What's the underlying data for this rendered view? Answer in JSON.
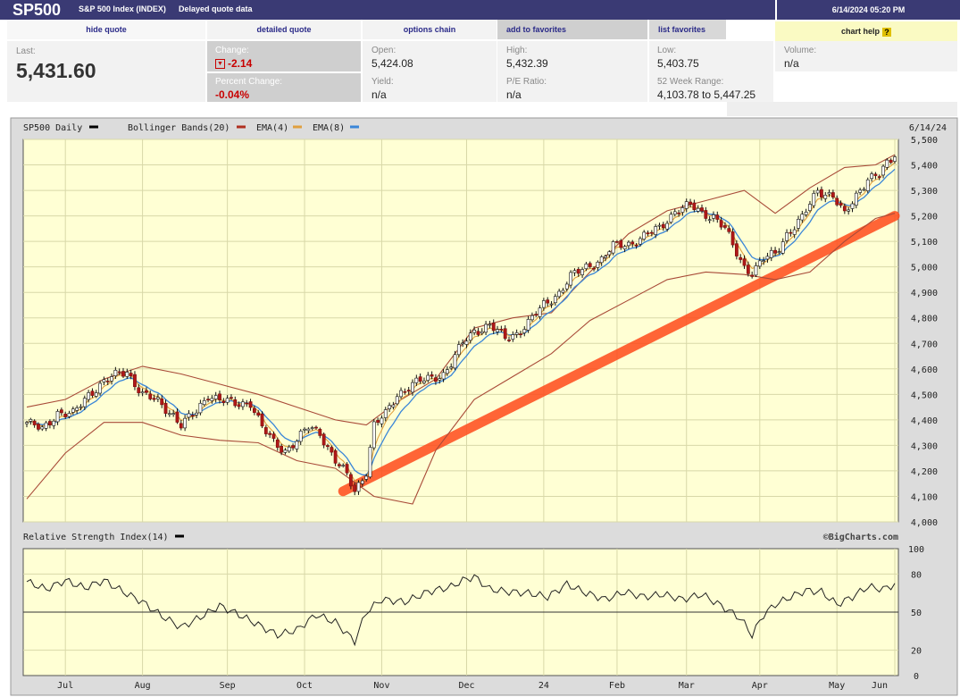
{
  "header": {
    "symbol": "SP500",
    "name": "S&P 500 Index (INDEX)",
    "delayed": "Delayed quote data",
    "datetime": "6/14/2024 05:20 PM"
  },
  "nav": {
    "hide_quote": "hide quote",
    "detailed_quote": "detailed quote",
    "options_chain": "options chain",
    "add_favorites": "add to favorites",
    "list_favorites": "list favorites",
    "chart_help": "chart help",
    "help_mark": "?"
  },
  "quote": {
    "last_label": "Last:",
    "last": "5,431.60",
    "change_label": "Change:",
    "change": "-2.14",
    "pct_label": "Percent Change:",
    "pct": "-0.04%",
    "open_label": "Open:",
    "open": "5,424.08",
    "high_label": "High:",
    "high": "5,432.39",
    "low_label": "Low:",
    "low": "5,403.75",
    "volume_label": "Volume:",
    "volume": "n/a",
    "yield_label": "Yield:",
    "yield": "n/a",
    "pe_label": "P/E Ratio:",
    "pe": "n/a",
    "range_label": "52 Week Range:",
    "range": "4,103.78 to 5,447.25"
  },
  "chart_data": [
    {
      "type": "line",
      "legend": {
        "price": "SP500 Daily",
        "bb": "Bollinger Bands(20)",
        "ema4": "EMA(4)",
        "ema8": "EMA(8)"
      },
      "date_label": "6/14/24",
      "ylim": [
        4000,
        5500
      ],
      "yticks": [
        "5,500",
        "5,400",
        "5,300",
        "5,200",
        "5,100",
        "5,000",
        "4,900",
        "4,800",
        "4,700",
        "4,600",
        "4,500",
        "4,400",
        "4,300",
        "4,200",
        "4,100",
        "4,000"
      ],
      "month_ticks": [
        "Jul",
        "Aug",
        "Sep",
        "Oct",
        "Nov",
        "Dec",
        "24",
        "Feb",
        "Mar",
        "Apr",
        "May",
        "Jun"
      ],
      "close_points": [
        [
          0,
          4390
        ],
        [
          4,
          4360
        ],
        [
          8,
          4430
        ],
        [
          12,
          4420
        ],
        [
          16,
          4500
        ],
        [
          20,
          4550
        ],
        [
          24,
          4580
        ],
        [
          26,
          4590
        ],
        [
          30,
          4500
        ],
        [
          34,
          4470
        ],
        [
          38,
          4420
        ],
        [
          40,
          4380
        ],
        [
          44,
          4430
        ],
        [
          47,
          4500
        ],
        [
          50,
          4480
        ],
        [
          54,
          4460
        ],
        [
          58,
          4470
        ],
        [
          61,
          4370
        ],
        [
          64,
          4310
        ],
        [
          67,
          4280
        ],
        [
          70,
          4320
        ],
        [
          73,
          4370
        ],
        [
          76,
          4350
        ],
        [
          80,
          4240
        ],
        [
          83,
          4180
        ],
        [
          85,
          4120
        ],
        [
          88,
          4200
        ],
        [
          90,
          4380
        ],
        [
          93,
          4420
        ],
        [
          96,
          4500
        ],
        [
          100,
          4540
        ],
        [
          104,
          4560
        ],
        [
          108,
          4580
        ],
        [
          110,
          4620
        ],
        [
          113,
          4700
        ],
        [
          116,
          4750
        ],
        [
          120,
          4770
        ],
        [
          124,
          4720
        ],
        [
          127,
          4740
        ],
        [
          130,
          4780
        ],
        [
          134,
          4850
        ],
        [
          138,
          4900
        ],
        [
          141,
          4960
        ],
        [
          145,
          5000
        ],
        [
          149,
          5030
        ],
        [
          152,
          5080
        ],
        [
          156,
          5090
        ],
        [
          160,
          5120
        ],
        [
          164,
          5150
        ],
        [
          168,
          5220
        ],
        [
          172,
          5240
        ],
        [
          175,
          5210
        ],
        [
          178,
          5200
        ],
        [
          181,
          5150
        ],
        [
          183,
          5080
        ],
        [
          186,
          5000
        ],
        [
          188,
          4980
        ],
        [
          191,
          5030
        ],
        [
          194,
          5050
        ],
        [
          197,
          5130
        ],
        [
          201,
          5190
        ],
        [
          205,
          5300
        ],
        [
          209,
          5280
        ],
        [
          212,
          5200
        ],
        [
          215,
          5280
        ],
        [
          218,
          5350
        ],
        [
          221,
          5360
        ],
        [
          223,
          5400
        ],
        [
          225,
          5431.6
        ]
      ],
      "bb_upper": [
        [
          0,
          4450
        ],
        [
          10,
          4480
        ],
        [
          20,
          4560
        ],
        [
          30,
          4610
        ],
        [
          40,
          4580
        ],
        [
          50,
          4540
        ],
        [
          60,
          4500
        ],
        [
          70,
          4450
        ],
        [
          80,
          4400
        ],
        [
          88,
          4380
        ],
        [
          96,
          4470
        ],
        [
          106,
          4560
        ],
        [
          116,
          4760
        ],
        [
          126,
          4800
        ],
        [
          136,
          4820
        ],
        [
          146,
          4980
        ],
        [
          156,
          5130
        ],
        [
          166,
          5220
        ],
        [
          176,
          5260
        ],
        [
          186,
          5300
        ],
        [
          194,
          5210
        ],
        [
          203,
          5310
        ],
        [
          212,
          5390
        ],
        [
          220,
          5400
        ],
        [
          225,
          5440
        ]
      ],
      "bb_lower": [
        [
          0,
          4090
        ],
        [
          10,
          4270
        ],
        [
          20,
          4390
        ],
        [
          30,
          4390
        ],
        [
          40,
          4340
        ],
        [
          50,
          4320
        ],
        [
          60,
          4310
        ],
        [
          70,
          4240
        ],
        [
          80,
          4210
        ],
        [
          90,
          4100
        ],
        [
          100,
          4070
        ],
        [
          106,
          4280
        ],
        [
          116,
          4480
        ],
        [
          126,
          4570
        ],
        [
          136,
          4660
        ],
        [
          146,
          4790
        ],
        [
          156,
          4870
        ],
        [
          166,
          4950
        ],
        [
          176,
          4980
        ],
        [
          186,
          4970
        ],
        [
          194,
          4950
        ],
        [
          203,
          4980
        ],
        [
          212,
          5100
        ],
        [
          220,
          5190
        ],
        [
          225,
          5210
        ]
      ],
      "trendline": [
        [
          82,
          4120
        ],
        [
          225,
          5200
        ]
      ]
    },
    {
      "type": "line",
      "legend": {
        "rsi": "Relative Strength Index(14)"
      },
      "credit": "©BigCharts.com",
      "ylim": [
        0,
        100
      ],
      "yticks": [
        "100",
        "80",
        "50",
        "20",
        "0"
      ],
      "rsi": [
        [
          0,
          74
        ],
        [
          5,
          68
        ],
        [
          10,
          75
        ],
        [
          15,
          69
        ],
        [
          20,
          75
        ],
        [
          25,
          66
        ],
        [
          30,
          58
        ],
        [
          35,
          47
        ],
        [
          40,
          38
        ],
        [
          45,
          46
        ],
        [
          50,
          55
        ],
        [
          55,
          48
        ],
        [
          60,
          40
        ],
        [
          65,
          32
        ],
        [
          70,
          36
        ],
        [
          75,
          48
        ],
        [
          80,
          42
        ],
        [
          85,
          27
        ],
        [
          88,
          50
        ],
        [
          92,
          60
        ],
        [
          98,
          58
        ],
        [
          104,
          66
        ],
        [
          110,
          70
        ],
        [
          113,
          75
        ],
        [
          116,
          78
        ],
        [
          120,
          68
        ],
        [
          125,
          66
        ],
        [
          130,
          65
        ],
        [
          135,
          62
        ],
        [
          140,
          72
        ],
        [
          145,
          65
        ],
        [
          150,
          60
        ],
        [
          155,
          66
        ],
        [
          160,
          62
        ],
        [
          165,
          64
        ],
        [
          170,
          60
        ],
        [
          175,
          64
        ],
        [
          180,
          55
        ],
        [
          185,
          45
        ],
        [
          188,
          32
        ],
        [
          191,
          48
        ],
        [
          194,
          56
        ],
        [
          198,
          62
        ],
        [
          202,
          67
        ],
        [
          206,
          66
        ],
        [
          210,
          56
        ],
        [
          214,
          62
        ],
        [
          218,
          70
        ],
        [
          222,
          68
        ],
        [
          225,
          72
        ]
      ]
    }
  ]
}
